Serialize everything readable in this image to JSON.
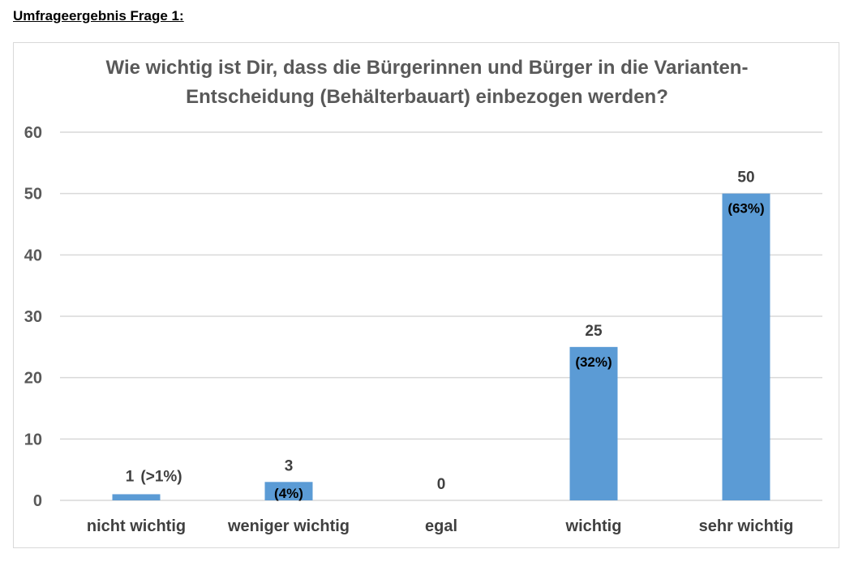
{
  "page": {
    "heading": "Umfrageergebnis Frage 1:"
  },
  "chart_data": {
    "type": "bar",
    "title_lines": [
      "Wie wichtig ist Dir, dass die Bürgerinnen und Bürger in die Varianten-",
      "Entscheidung (Behälterbauart) einbezogen werden?"
    ],
    "categories": [
      "nicht wichtig",
      "weniger wichtig",
      "egal",
      "wichtig",
      "sehr wichtig"
    ],
    "values": [
      1,
      3,
      0,
      25,
      50
    ],
    "value_labels": [
      "1",
      "3",
      "0",
      "25",
      "50"
    ],
    "percent_labels": [
      "(>1%)",
      "(4%)",
      "",
      "(32%)",
      "(63%)"
    ],
    "ylim": [
      0,
      60
    ],
    "yticks": [
      0,
      10,
      20,
      30,
      40,
      50,
      60
    ],
    "grid": true,
    "bar_color": "#5b9bd5",
    "grid_color": "#d9d9d9"
  }
}
